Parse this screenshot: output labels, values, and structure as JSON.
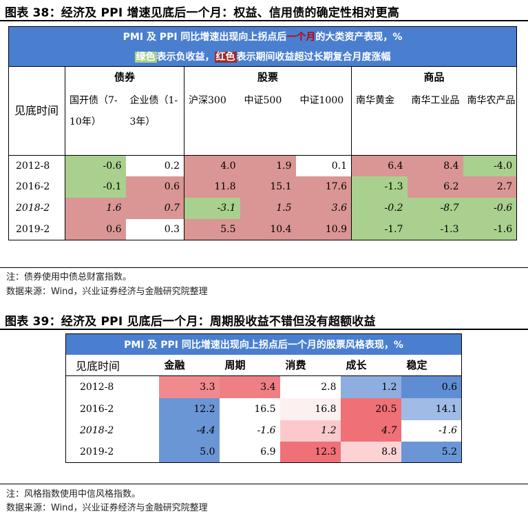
{
  "figure38": {
    "title": "图表 38：经济及 PPI 增速见底后一个月：权益、信用债的确定性相对更高",
    "header_line1_pre": "PMI 及 PPI 同比增速出现向上拐点后",
    "header_line1_red": "一个月",
    "header_line1_post": "的大类资产表现，%",
    "header_line2_green": "绿色",
    "header_line2_mid": "表示负收益，",
    "header_line2_red": "红色",
    "header_line2_post": "表示期间收益超过长期复合月度涨幅",
    "row_label_header": "见底时间",
    "groups": {
      "bonds": "债券",
      "equities": "股票",
      "commodities": "商品"
    },
    "columns": [
      "国开债（7-10年）",
      "企业债（1-3年）",
      "沪深300",
      "中证500",
      "中证1000",
      "南华黄金",
      "南华工业品",
      "南华农产品"
    ],
    "rows": [
      {
        "label": "2012-8",
        "values": [
          "-0.6",
          "0.2",
          "4.0",
          "1.9",
          "0.1",
          "6.4",
          "8.4",
          "-4.0"
        ]
      },
      {
        "label": "2016-2",
        "values": [
          "-0.1",
          "0.6",
          "11.8",
          "15.1",
          "17.6",
          "-1.3",
          "6.2",
          "2.7"
        ]
      },
      {
        "label": "2018-2",
        "values": [
          "1.6",
          "0.7",
          "-3.1",
          "1.5",
          "3.6",
          "-0.2",
          "-8.7",
          "-0.6"
        ]
      },
      {
        "label": "2019-2",
        "values": [
          "0.6",
          "0.3",
          "5.5",
          "10.4",
          "10.9",
          "-1.7",
          "-1.3",
          "-1.6"
        ]
      }
    ],
    "note": "注：债券使用中债总财富指数。",
    "source": "数据来源：Wind，兴业证券经济与金融研究院整理"
  },
  "figure39": {
    "title": "图表 39：经济及 PPI 见底后一个月：周期股收益不错但没有超额收益",
    "header": "PMI 及 PPI 同比增速出现向上拐点后一个月的股票风格表现，%",
    "row_label_header": "见底时间",
    "columns": [
      "金融",
      "周期",
      "消费",
      "成长",
      "稳定"
    ],
    "rows": [
      {
        "label": "2012-8",
        "values": [
          "3.3",
          "3.4",
          "2.8",
          "1.2",
          "0.6"
        ]
      },
      {
        "label": "2016-2",
        "values": [
          "12.2",
          "16.5",
          "16.8",
          "20.5",
          "14.1"
        ]
      },
      {
        "label": "2018-2",
        "values": [
          "-4.4",
          "-1.6",
          "1.2",
          "4.7",
          "-1.6"
        ]
      },
      {
        "label": "2019-2",
        "values": [
          "5.0",
          "6.9",
          "12.3",
          "8.8",
          "5.2"
        ]
      }
    ],
    "note": "注：风格指数使用中信风格指数。",
    "source": "数据来源：Wind，兴业证券经济与金融研究院整理"
  },
  "colors": {
    "header_blue": "#4a7fcf",
    "positive_green": "#a9d08e",
    "excess_red": "#d99694"
  }
}
